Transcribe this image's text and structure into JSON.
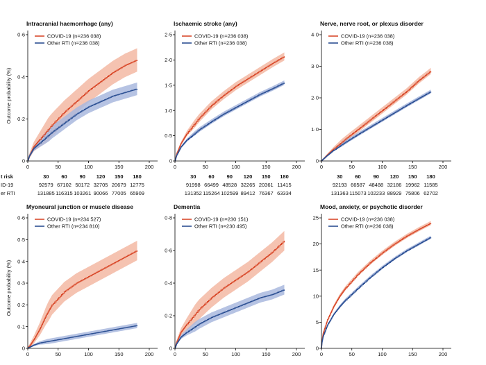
{
  "ylabel": "Outcome probability (%)",
  "risk": {
    "header": "t risk",
    "rowlabels": [
      "ID-19",
      "er RTI"
    ],
    "panels": [
      {
        "times": [
          "30",
          "60",
          "90",
          "120",
          "150",
          "180"
        ],
        "covid": [
          "92579",
          "67102",
          "50172",
          "32705",
          "20679",
          "12775"
        ],
        "other": [
          "131885",
          "116315",
          "103261",
          "90066",
          "77005",
          "65909"
        ]
      },
      {
        "times": [
          "30",
          "60",
          "90",
          "120",
          "150",
          "180"
        ],
        "covid": [
          "91998",
          "66499",
          "48528",
          "32265",
          "20361",
          "11415"
        ],
        "other": [
          "131352",
          "115264",
          "102599",
          "89412",
          "76367",
          "63334"
        ]
      },
      {
        "times": [
          "30",
          "60",
          "90",
          "120",
          "150",
          "180"
        ],
        "covid": [
          "92193",
          "66587",
          "48488",
          "32186",
          "19962",
          "11585"
        ],
        "other": [
          "131363",
          "115073",
          "102233",
          "88929",
          "75806",
          "62702"
        ]
      }
    ]
  },
  "colors": {
    "covid": "#d94a2b",
    "other": "#2b4f93",
    "covid_band": "#f3b9a3",
    "other_band": "#a9b9de",
    "axis": "#000000"
  },
  "chart_data": [
    {
      "type": "line",
      "title": "Intracranial haemorrhage (any)",
      "xlim": [
        0,
        200
      ],
      "ylim": [
        0,
        0.7
      ],
      "xticks": [
        "0",
        "50",
        "100",
        "150",
        "200"
      ],
      "yticks": [
        "0",
        "0·2",
        "0·4",
        "0·6"
      ],
      "series": [
        {
          "name": "COVID-19 (n=236 038)",
          "x": [
            0,
            3,
            10,
            20,
            40,
            60,
            80,
            100,
            120,
            140,
            160,
            180
          ],
          "values": [
            0,
            0.03,
            0.08,
            0.12,
            0.2,
            0.27,
            0.33,
            0.39,
            0.44,
            0.49,
            0.53,
            0.56
          ],
          "band": 0.065
        },
        {
          "name": "Other RTI (n=236 038)",
          "x": [
            0,
            3,
            10,
            20,
            40,
            60,
            80,
            100,
            120,
            140,
            160,
            180
          ],
          "values": [
            0,
            0.03,
            0.07,
            0.1,
            0.16,
            0.21,
            0.26,
            0.3,
            0.33,
            0.36,
            0.38,
            0.4
          ],
          "band": 0.035
        }
      ]
    },
    {
      "type": "line",
      "title": "Ischaemic stroke (any)",
      "xlim": [
        0,
        200
      ],
      "ylim": [
        0,
        2.5
      ],
      "xticks": [
        "0",
        "50",
        "100",
        "150",
        "200"
      ],
      "yticks": [
        "0",
        "0·5",
        "1·0",
        "1·5",
        "2·0",
        "2·5"
      ],
      "series": [
        {
          "name": "COVID-19 (n=236 038)",
          "x": [
            0,
            3,
            10,
            20,
            40,
            60,
            80,
            100,
            120,
            140,
            160,
            180
          ],
          "values": [
            0,
            0.15,
            0.35,
            0.55,
            0.85,
            1.1,
            1.3,
            1.48,
            1.63,
            1.78,
            1.93,
            2.07
          ],
          "band": 0.08
        },
        {
          "name": "Other RTI (n=236 038)",
          "x": [
            0,
            3,
            10,
            20,
            40,
            60,
            80,
            100,
            120,
            140,
            160,
            180
          ],
          "values": [
            0,
            0.12,
            0.28,
            0.42,
            0.62,
            0.78,
            0.93,
            1.06,
            1.19,
            1.32,
            1.43,
            1.55
          ],
          "band": 0.045
        }
      ]
    },
    {
      "type": "line",
      "title": "Nerve, nerve root, or plexus disorder",
      "xlim": [
        0,
        200
      ],
      "ylim": [
        0,
        4.0
      ],
      "xticks": [
        "0",
        "50",
        "100",
        "150",
        "200"
      ],
      "yticks": [
        "0",
        "1·0",
        "2·0",
        "3·0",
        "4·0"
      ],
      "series": [
        {
          "name": "COVID-19 (n=236 038)",
          "x": [
            0,
            3,
            10,
            20,
            40,
            60,
            80,
            100,
            120,
            140,
            160,
            180
          ],
          "values": [
            0,
            0.06,
            0.2,
            0.38,
            0.7,
            1.0,
            1.3,
            1.6,
            1.9,
            2.2,
            2.55,
            2.85
          ],
          "band": 0.1
        },
        {
          "name": "Other RTI (n=236 038)",
          "x": [
            0,
            3,
            10,
            20,
            40,
            60,
            80,
            100,
            120,
            140,
            160,
            180
          ],
          "values": [
            0,
            0.06,
            0.18,
            0.34,
            0.6,
            0.84,
            1.07,
            1.3,
            1.53,
            1.76,
            1.98,
            2.2
          ],
          "band": 0.06
        }
      ]
    },
    {
      "type": "line",
      "title": "Myoneural junction or muscle disease",
      "xlim": [
        0,
        200
      ],
      "ylim": [
        0,
        0.6
      ],
      "xticks": [
        "0",
        "50",
        "100",
        "150",
        "200"
      ],
      "yticks": [
        "0",
        "0·1",
        "0·2",
        "0·3",
        "0·4",
        "0·5",
        "0·6"
      ],
      "series": [
        {
          "name": "COVID-19 (n=234 527)",
          "x": [
            0,
            3,
            10,
            20,
            30,
            40,
            60,
            80,
            100,
            120,
            140,
            160,
            180
          ],
          "values": [
            0,
            0.01,
            0.04,
            0.09,
            0.15,
            0.2,
            0.26,
            0.3,
            0.33,
            0.36,
            0.39,
            0.42,
            0.45
          ],
          "band": 0.045
        },
        {
          "name": "Other RTI (n=234 810)",
          "x": [
            0,
            3,
            10,
            20,
            40,
            60,
            80,
            100,
            120,
            140,
            160,
            180
          ],
          "values": [
            0,
            0.005,
            0.015,
            0.025,
            0.035,
            0.045,
            0.055,
            0.065,
            0.075,
            0.085,
            0.095,
            0.105
          ],
          "band": 0.012
        }
      ]
    },
    {
      "type": "line",
      "title": "Dementia",
      "xlim": [
        0,
        200
      ],
      "ylim": [
        0,
        0.8
      ],
      "xticks": [
        "0",
        "50",
        "100",
        "150",
        "200"
      ],
      "yticks": [
        "0",
        "0·2",
        "0·4",
        "0·6",
        "0·8"
      ],
      "series": [
        {
          "name": "COVID-19 (n=230 151)",
          "x": [
            0,
            3,
            10,
            20,
            40,
            60,
            80,
            100,
            120,
            140,
            160,
            180
          ],
          "values": [
            0,
            0.04,
            0.1,
            0.15,
            0.24,
            0.31,
            0.37,
            0.42,
            0.47,
            0.53,
            0.59,
            0.66
          ],
          "band": 0.06
        },
        {
          "name": "Other RTI (n=230 495)",
          "x": [
            0,
            3,
            10,
            20,
            40,
            60,
            80,
            100,
            120,
            140,
            160,
            180
          ],
          "values": [
            0,
            0.03,
            0.07,
            0.1,
            0.15,
            0.19,
            0.22,
            0.25,
            0.28,
            0.31,
            0.33,
            0.36
          ],
          "band": 0.03
        }
      ]
    },
    {
      "type": "line",
      "title": "Mood, anxiety, or psychotic disorder",
      "xlim": [
        0,
        200
      ],
      "ylim": [
        0,
        25
      ],
      "xticks": [
        "0",
        "50",
        "100",
        "150",
        "200"
      ],
      "yticks": [
        "0",
        "5",
        "10",
        "15",
        "20",
        "25"
      ],
      "series": [
        {
          "name": "COVID-19 (n=236 038)",
          "x": [
            0,
            1,
            3,
            10,
            20,
            30,
            40,
            60,
            80,
            100,
            120,
            140,
            160,
            180
          ],
          "values": [
            0,
            1.5,
            3.0,
            5.5,
            8.0,
            10.0,
            11.6,
            14.2,
            16.4,
            18.3,
            20.0,
            21.5,
            22.8,
            24.0
          ],
          "band": 0.4
        },
        {
          "name": "Other RTI (n=236 038)",
          "x": [
            0,
            1,
            3,
            10,
            20,
            30,
            40,
            60,
            80,
            100,
            120,
            140,
            160,
            180
          ],
          "values": [
            0,
            1.2,
            2.4,
            4.5,
            6.5,
            8.0,
            9.3,
            11.5,
            13.6,
            15.5,
            17.2,
            18.7,
            20.0,
            21.3
          ],
          "band": 0.3
        }
      ]
    }
  ]
}
